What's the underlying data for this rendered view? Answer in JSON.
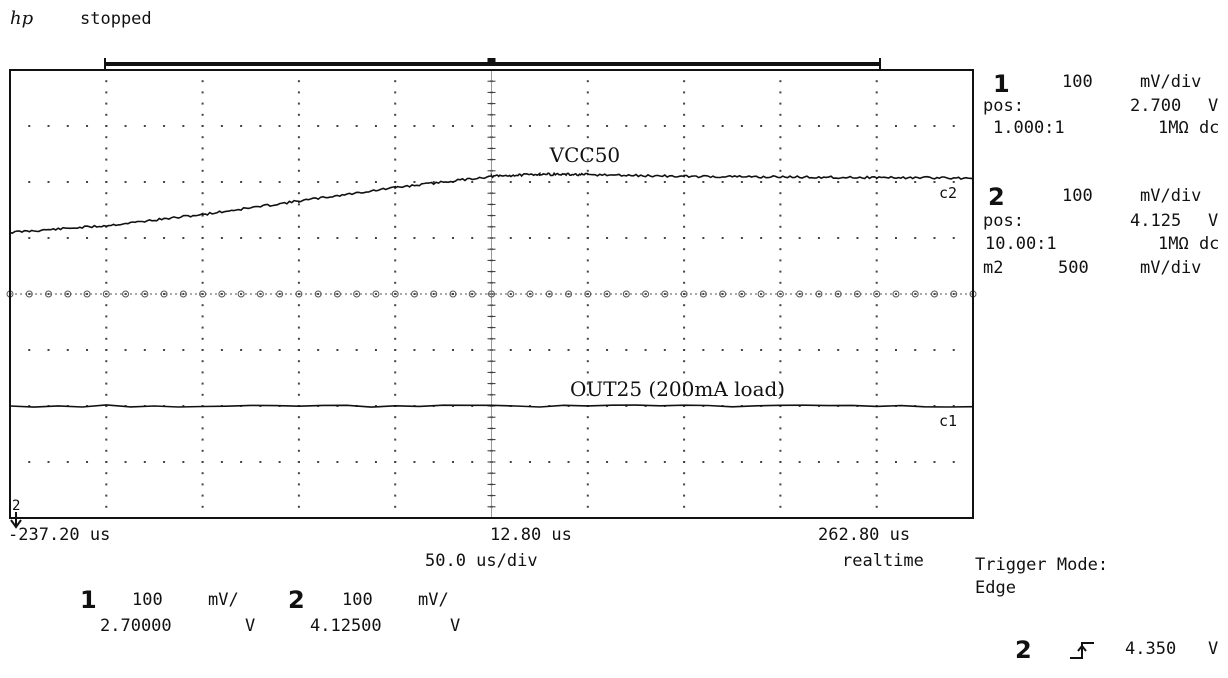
{
  "header": {
    "logo": "hp",
    "status": "stopped"
  },
  "channels": [
    {
      "number": "1",
      "scale": "100",
      "unit": "mV/div",
      "pos_label": "pos:",
      "pos_value": "2.700",
      "pos_unit": "V",
      "probe": "1.000:1",
      "coupling": "1MΩ dc"
    },
    {
      "number": "2",
      "scale": "100",
      "unit": "mV/div",
      "pos_label": "pos:",
      "pos_value": "4.125",
      "pos_unit": "V",
      "probe": "10.00:1",
      "coupling": "1MΩ dc"
    }
  ],
  "math": {
    "label": "m2",
    "scale": "500",
    "unit": "mV/div"
  },
  "time": {
    "left": "-237.20 us",
    "center": "12.80 us",
    "right": "262.80 us",
    "per_div": "50.0 us/div",
    "mode": "realtime"
  },
  "trigger": {
    "mode_label": "Trigger Mode:",
    "mode_value": "Edge",
    "channel": "2",
    "slope_icon": "rising-edge-icon",
    "level": "4.350",
    "unit": "V"
  },
  "footer": {
    "ch1": {
      "number": "1",
      "scale": "100",
      "unit": "mV/",
      "offset": "2.70000",
      "offset_unit": "V"
    },
    "ch2": {
      "number": "2",
      "scale": "100",
      "unit": "mV/",
      "offset": "4.12500",
      "offset_unit": "V"
    }
  },
  "chart_data": {
    "type": "line",
    "x_unit": "us",
    "xlim": [
      -237.2,
      262.8
    ],
    "x_divisions": 10,
    "y_divisions": 8,
    "grid": true,
    "series": [
      {
        "name": "VCC50",
        "marker": "c2",
        "divisions_from_top": [
          [
            -237.2,
            2.9
          ],
          [
            -187.2,
            2.78
          ],
          [
            -137.2,
            2.58
          ],
          [
            -87.2,
            2.34
          ],
          [
            -37.2,
            2.1
          ],
          [
            12.8,
            1.9
          ],
          [
            37.8,
            1.86
          ],
          [
            62.8,
            1.87
          ],
          [
            112.8,
            1.9
          ],
          [
            162.8,
            1.91
          ],
          [
            212.8,
            1.92
          ],
          [
            262.8,
            1.93
          ]
        ]
      },
      {
        "name": "OUT25   (200mA load)",
        "marker": "c1",
        "divisions_from_top": [
          [
            -237.2,
            6.0
          ],
          [
            262.8,
            6.0
          ]
        ]
      }
    ],
    "ground_marker": "2"
  }
}
